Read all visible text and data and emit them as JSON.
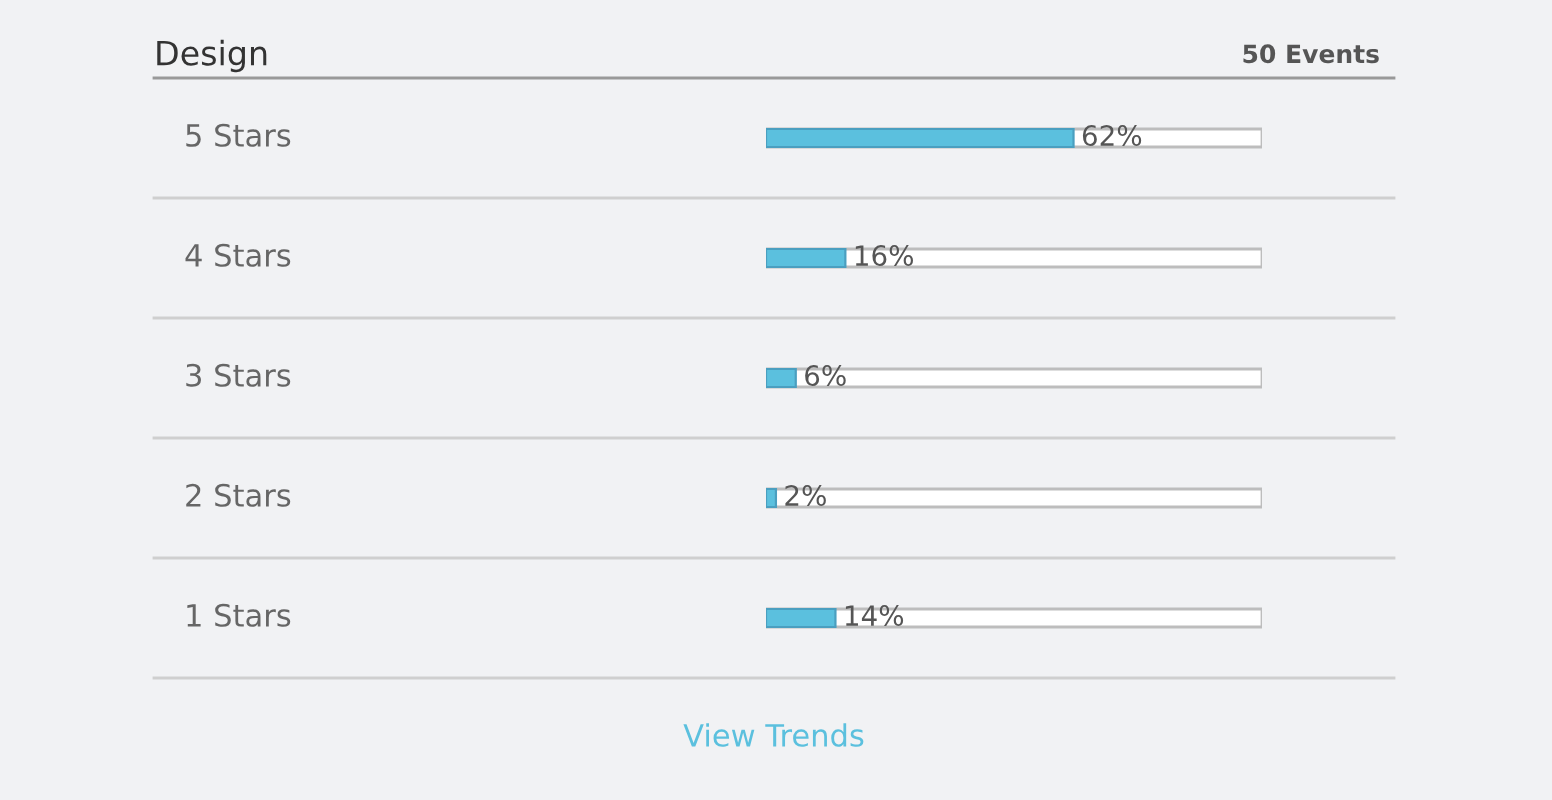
{
  "chart_data": {
    "type": "bar",
    "orientation": "horizontal",
    "title": "Design",
    "subtitle": "50 Events",
    "categories": [
      "5 Stars",
      "4 Stars",
      "3 Stars",
      "2 Stars",
      "1 Stars"
    ],
    "values": [
      62,
      16,
      6,
      2,
      14
    ],
    "color": "#5bc0de",
    "tick_labels": false,
    "value_labels": [
      "62%",
      "16%",
      "6%",
      "2%",
      "14%"
    ],
    "annotations": [
      "View Trends"
    ]
  }
}
